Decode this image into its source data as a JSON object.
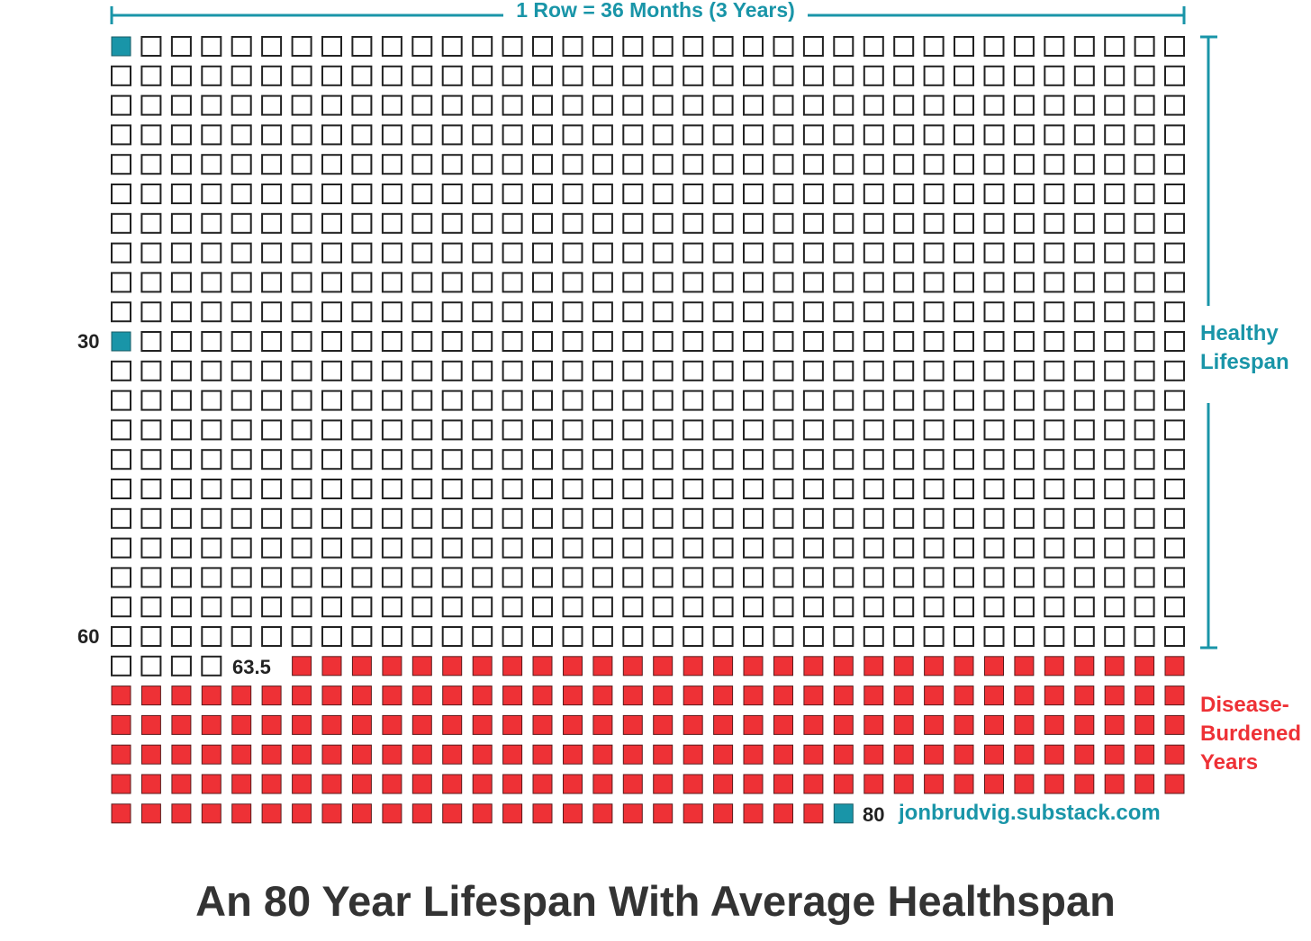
{
  "header": {
    "row_label": "1 Row = 36 Months (3 Years)"
  },
  "grid": {
    "columns": 36,
    "rows": 27,
    "months_per_row": 36,
    "years_per_row": 3,
    "total_months": 961,
    "healthy_months": 762,
    "disease_months": 199,
    "marker_months": [
      1,
      361,
      961
    ],
    "healthy_color": "#ffffff",
    "disease_color": "#ee3136",
    "marker_color": "#1995a8",
    "outline_color": "#222222"
  },
  "markers": {
    "age_30": "30",
    "age_60": "60",
    "age_63_5": "63.5",
    "age_80": "80"
  },
  "side_labels": {
    "healthy": [
      "Healthy",
      "Lifespan"
    ],
    "disease": [
      "Disease-",
      "Burdened",
      "Years"
    ]
  },
  "watermark": "jonbrudvig.substack.com",
  "title": "An 80 Year Lifespan With Average Healthspan",
  "colors": {
    "teal": "#1995a8",
    "red": "#ee3136",
    "text_dark": "#333333"
  }
}
